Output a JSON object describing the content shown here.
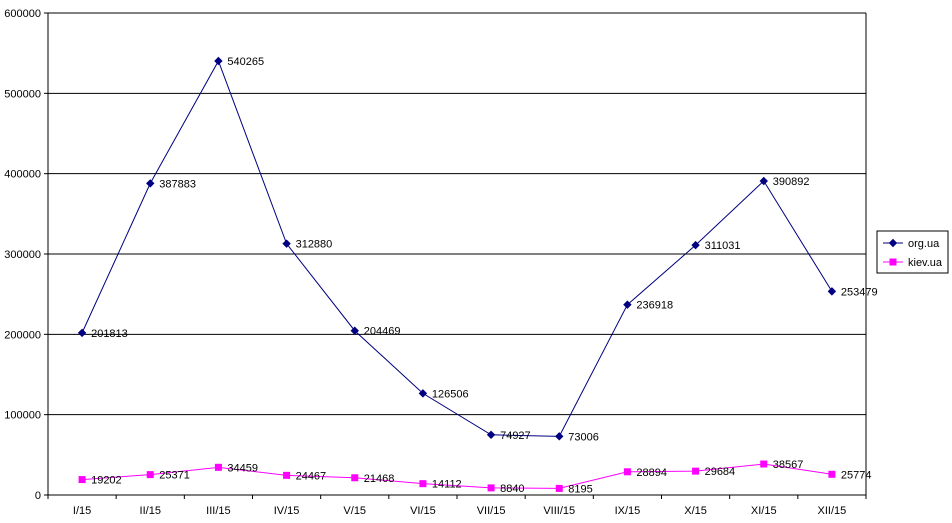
{
  "chart_data": {
    "type": "line",
    "title": "",
    "xlabel": "",
    "ylabel": "",
    "categories": [
      "I/15",
      "II/15",
      "III/15",
      "IV/15",
      "V/15",
      "VI/15",
      "VII/15",
      "VIII/15",
      "IX/15",
      "X/15",
      "XI/15",
      "XII/15"
    ],
    "ylim": [
      0,
      600000
    ],
    "yticks": [
      0,
      100000,
      200000,
      300000,
      400000,
      500000,
      600000
    ],
    "ytick_labels": [
      "0",
      "100000",
      "200000",
      "300000",
      "400000",
      "500000",
      "600000"
    ],
    "grid": "horizontal",
    "legend_position": "right",
    "series": [
      {
        "name": "org.ua",
        "color": "#000080",
        "marker": "diamond",
        "values": [
          201813,
          387883,
          540265,
          312880,
          204469,
          126506,
          74927,
          73006,
          236918,
          311031,
          390892,
          253479
        ],
        "labels": [
          "201813",
          "387883",
          "540265",
          "312880",
          "204469",
          "126506",
          "74927",
          "73006",
          "236918",
          "311031",
          "390892",
          "253479"
        ]
      },
      {
        "name": "kiev.ua",
        "color": "#ff00ff",
        "marker": "square",
        "values": [
          19202,
          25371,
          34459,
          24467,
          21468,
          14112,
          8840,
          8195,
          28894,
          29684,
          38567,
          25774
        ],
        "labels": [
          "19202",
          "25371",
          "34459",
          "24467",
          "21468",
          "14112",
          "8840",
          "8195",
          "28894",
          "29684",
          "38567",
          "25774"
        ]
      }
    ]
  }
}
